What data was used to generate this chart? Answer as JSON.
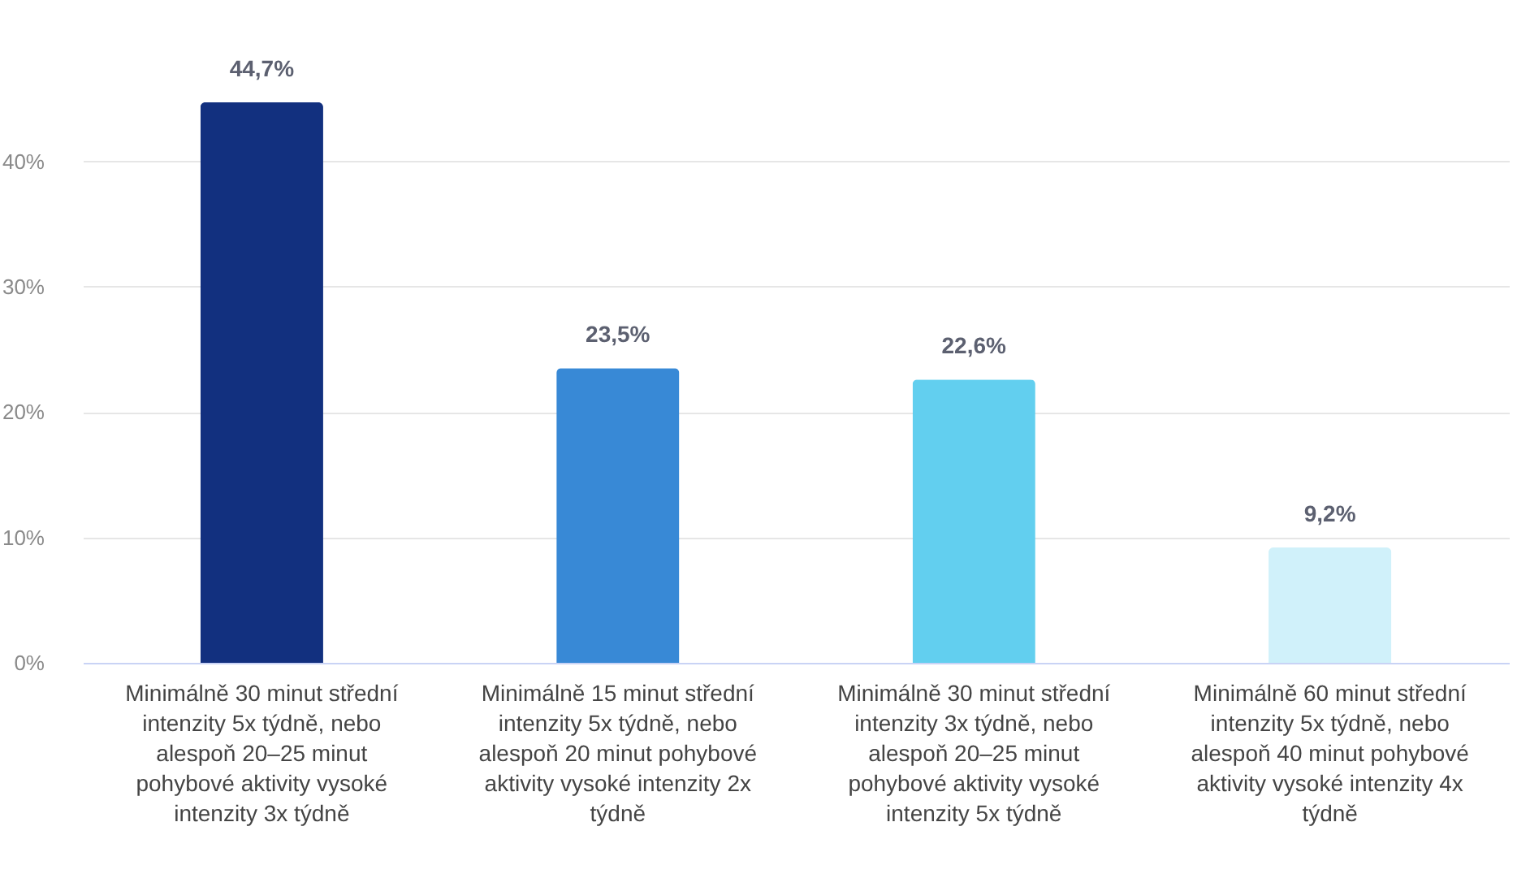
{
  "chart_data": {
    "type": "bar",
    "categories": [
      "Minimálně 30 minut střední intenzity 5x týdně, nebo alespoň 20–25 minut pohybové aktivity vysoké intenzity 3x týdně",
      "Minimálně 15 minut střední intenzity 5x týdně, nebo alespoň 20 minut pohybové aktivity vysoké intenzity 2x týdně",
      "Minimálně 30 minut střední intenzity 3x týdně, nebo alespoň 20–25 minut pohybové aktivity vysoké intenzity 5x týdně",
      "Minimálně 60 minut střední intenzity 5x týdně, nebo alespoň 40 minut pohybové aktivity vysoké intenzity 4x týdně"
    ],
    "values": [
      44.7,
      23.5,
      22.6,
      9.2
    ],
    "colors": [
      "#12307f",
      "#3889d6",
      "#62cfef",
      "#d0f1fa"
    ],
    "value_labels": [
      "44,7%",
      "23,5%",
      "22,6%",
      "9,2%"
    ],
    "yticks": [
      {
        "value": 0,
        "label": "0%"
      },
      {
        "value": 10,
        "label": "10%"
      },
      {
        "value": 20,
        "label": "20%"
      },
      {
        "value": 30,
        "label": "30%"
      },
      {
        "value": 40,
        "label": "40%"
      }
    ],
    "ylim": [
      0,
      44.7
    ],
    "grid": "y"
  }
}
